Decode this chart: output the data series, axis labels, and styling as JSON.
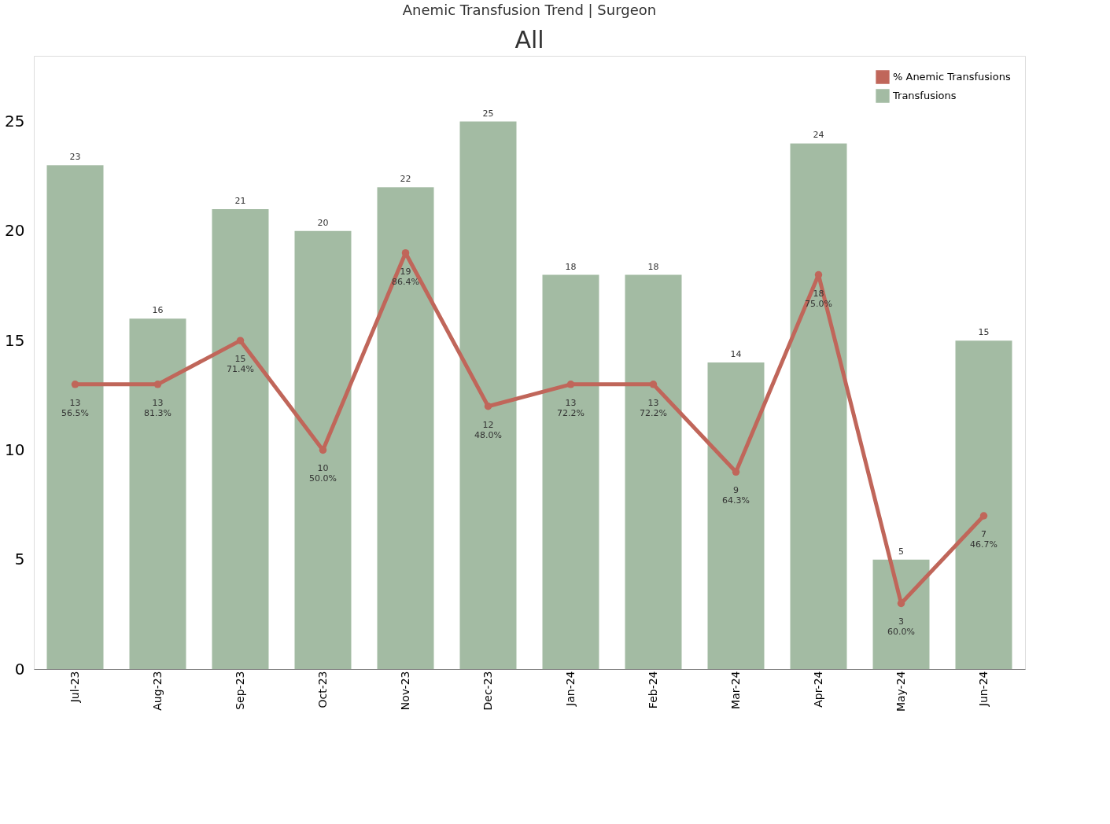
{
  "chart_data": {
    "type": "bar",
    "title": "Anemic Transfusion Trend | Surgeon",
    "subtitle": "All",
    "categories": [
      "Jul-23",
      "Aug-23",
      "Sep-23",
      "Oct-23",
      "Nov-23",
      "Dec-23",
      "Jan-24",
      "Feb-24",
      "Mar-24",
      "Apr-24",
      "May-24",
      "Jun-24"
    ],
    "series": [
      {
        "name": "% Anemic Transfusions",
        "type": "line",
        "color": "#c0665a",
        "values": [
          13,
          13,
          15,
          10,
          19,
          12,
          13,
          13,
          9,
          18,
          3,
          7
        ],
        "value_labels": [
          "13\n56.5%",
          "13\n81.3%",
          "15\n71.4%",
          "10\n50.0%",
          "19\n86.4%",
          "12\n48.0%",
          "13\n72.2%",
          "13\n72.2%",
          "9\n64.3%",
          "18\n75.0%",
          "3\n60.0%",
          "7\n46.7%"
        ]
      },
      {
        "name": "Transfusions",
        "color": "#a3bba3",
        "values": [
          23,
          16,
          21,
          20,
          22,
          25,
          18,
          18,
          14,
          24,
          5,
          15
        ],
        "value_labels": [
          "23",
          "16",
          "21",
          "20",
          "22",
          "25",
          "18",
          "18",
          "14",
          "24",
          "5",
          "15"
        ]
      }
    ],
    "ylim": [
      0,
      28
    ],
    "yticks": [
      0,
      5,
      10,
      15,
      20,
      25
    ],
    "grid": false,
    "legend": "top right",
    "marker": "circle",
    "line_style": "solid"
  }
}
